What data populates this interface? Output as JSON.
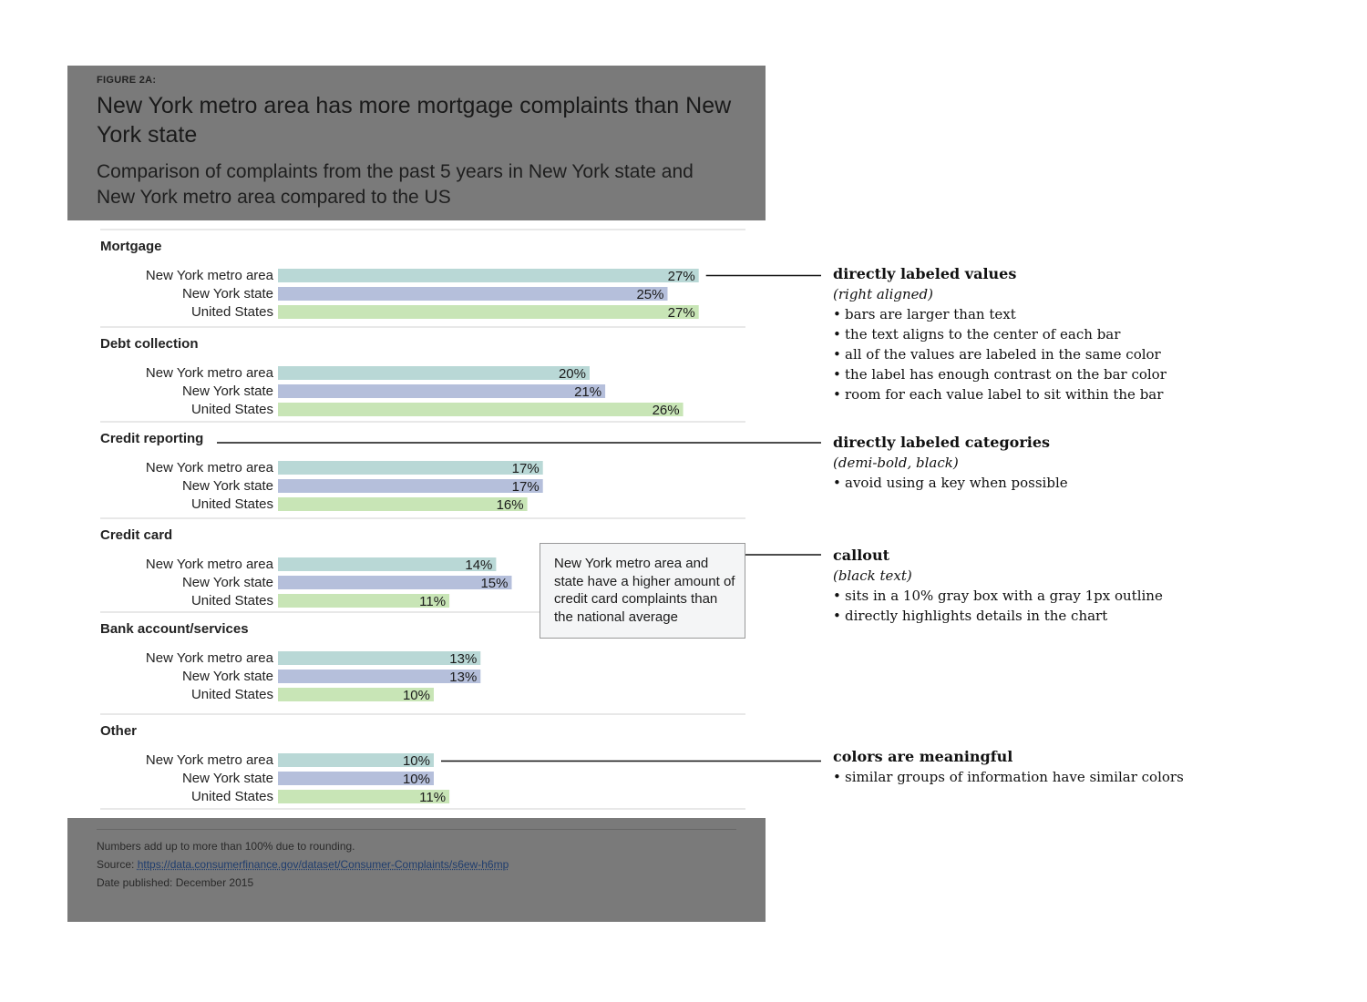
{
  "header": {
    "figure_label": "FIGURE 2A:",
    "title": "New York metro area has more mortgage complaints than New York state",
    "subtitle": "Comparison of complaints from the past 5 years in New York state and New York metro area compared to the US"
  },
  "chart_data": {
    "type": "bar",
    "orientation": "horizontal",
    "title": "New York metro area has more mortgage complaints than New York state",
    "subtitle": "Comparison of complaints from the past 5 years in New York state and New York metro area compared to the US",
    "xlim": [
      0,
      30
    ],
    "unit": "%",
    "series_colors": {
      "New York metro area": "#b9d8d6",
      "New York state": "#b5bfdb",
      "United States": "#c8e5b6"
    },
    "groups": [
      {
        "category": "Mortgage",
        "rows": [
          {
            "label": "New York metro area",
            "value": 27,
            "value_label": "27%"
          },
          {
            "label": "New York state",
            "value": 25,
            "value_label": "25%"
          },
          {
            "label": "United States",
            "value": 27,
            "value_label": "27%"
          }
        ]
      },
      {
        "category": "Debt collection",
        "rows": [
          {
            "label": "New York metro area",
            "value": 20,
            "value_label": "20%"
          },
          {
            "label": "New York state",
            "value": 21,
            "value_label": "21%"
          },
          {
            "label": "United States",
            "value": 26,
            "value_label": "26%"
          }
        ]
      },
      {
        "category": "Credit reporting",
        "rows": [
          {
            "label": "New York metro area",
            "value": 17,
            "value_label": "17%"
          },
          {
            "label": "New York state",
            "value": 17,
            "value_label": "17%"
          },
          {
            "label": "United States",
            "value": 16,
            "value_label": "16%"
          }
        ]
      },
      {
        "category": "Credit card",
        "rows": [
          {
            "label": "New York metro area",
            "value": 14,
            "value_label": "14%"
          },
          {
            "label": "New York state",
            "value": 15,
            "value_label": "15%"
          },
          {
            "label": "United States",
            "value": 11,
            "value_label": "11%"
          }
        ]
      },
      {
        "category": "Bank account/services",
        "rows": [
          {
            "label": "New York metro area",
            "value": 13,
            "value_label": "13%"
          },
          {
            "label": "New York state",
            "value": 13,
            "value_label": "13%"
          },
          {
            "label": "United States",
            "value": 10,
            "value_label": "10%"
          }
        ]
      },
      {
        "category": "Other",
        "rows": [
          {
            "label": "New York metro area",
            "value": 10,
            "value_label": "10%"
          },
          {
            "label": "New York state",
            "value": 10,
            "value_label": "10%"
          },
          {
            "label": "United States",
            "value": 11,
            "value_label": "11%"
          }
        ]
      }
    ]
  },
  "callout": {
    "text": "New York metro area and state have a higher amount of credit card complaints than the national average"
  },
  "footer": {
    "note": "Numbers add up to more than 100% due to rounding.",
    "source_label": "Source:",
    "source_url": "https://data.consumerfinance.gov/dataset/Consumer-Complaints/s6ew-h6mp",
    "date_label": "Date published:",
    "date_value": "December 2015"
  },
  "annotations": [
    {
      "heading": "directly labeled values",
      "subheading": "(right aligned)",
      "bullets": [
        "bars are larger than text",
        "the text aligns to the center of each bar",
        "all of the values are labeled in the same color",
        "the label has enough contrast on the bar color",
        "room for each value label to sit within the bar"
      ]
    },
    {
      "heading": "directly labeled categories",
      "subheading": "(demi-bold, black)",
      "bullets": [
        "avoid using a key when possible"
      ]
    },
    {
      "heading": "callout",
      "subheading": "(black text)",
      "bullets": [
        "sits in a 10% gray box with a gray 1px outline",
        "directly highlights details in the chart"
      ]
    },
    {
      "heading": "colors are meaningful",
      "subheading": "",
      "bullets": [
        "similar groups of information have similar colors"
      ]
    }
  ]
}
